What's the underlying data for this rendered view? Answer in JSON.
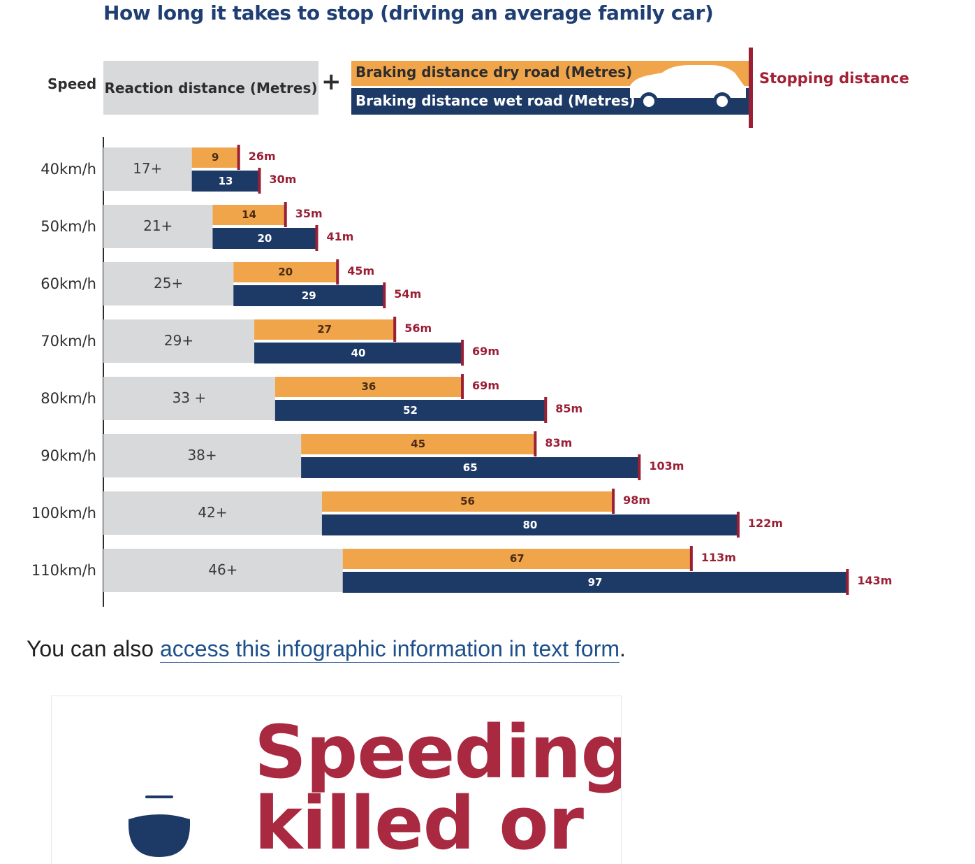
{
  "page": {
    "caption_prefix": "You can also ",
    "caption_link": "access this infographic information in text form",
    "caption_suffix": ".",
    "headline_line1": "Speeding",
    "headline_line2": "killed or"
  },
  "colors": {
    "title": "#1f3f73",
    "reaction": "#d8d9db",
    "dry": "#f1a54b",
    "wet": "#1d3a67",
    "stop": "#9a1f35",
    "headline": "#a92941",
    "link": "#1d4f8b"
  },
  "icons": {
    "car": "car-icon",
    "lower_symbol": "speed-dome-icon"
  },
  "chart_data": {
    "type": "bar",
    "title": "How long it takes to stop (driving an average family car)",
    "legend": {
      "speed": "Speed",
      "reaction": "Reaction distance (Metres)",
      "plus": "+",
      "dry": "Braking distance dry road (Metres)",
      "wet": "Braking distance wet road (Metres)",
      "stop": "Stopping distance"
    },
    "categories": [
      "40km/h",
      "50km/h",
      "60km/h",
      "70km/h",
      "80km/h",
      "90km/h",
      "100km/h",
      "110km/h"
    ],
    "reaction_labels": [
      "17+",
      "21+",
      "25+",
      "29+",
      "33 +",
      "38+",
      "42+",
      "46+"
    ],
    "series": [
      {
        "name": "Reaction distance (Metres)",
        "values": [
          17,
          21,
          25,
          29,
          33,
          38,
          42,
          46
        ]
      },
      {
        "name": "Braking distance dry road (Metres)",
        "values": [
          9,
          14,
          20,
          27,
          36,
          45,
          56,
          67
        ]
      },
      {
        "name": "Braking distance wet road (Metres)",
        "values": [
          13,
          20,
          29,
          40,
          52,
          65,
          80,
          97
        ]
      }
    ],
    "stopping_dry": [
      "26m",
      "35m",
      "45m",
      "56m",
      "69m",
      "83m",
      "98m",
      "113m"
    ],
    "stopping_wet": [
      "30m",
      "41m",
      "54m",
      "69m",
      "85m",
      "103m",
      "122m",
      "143m"
    ]
  }
}
